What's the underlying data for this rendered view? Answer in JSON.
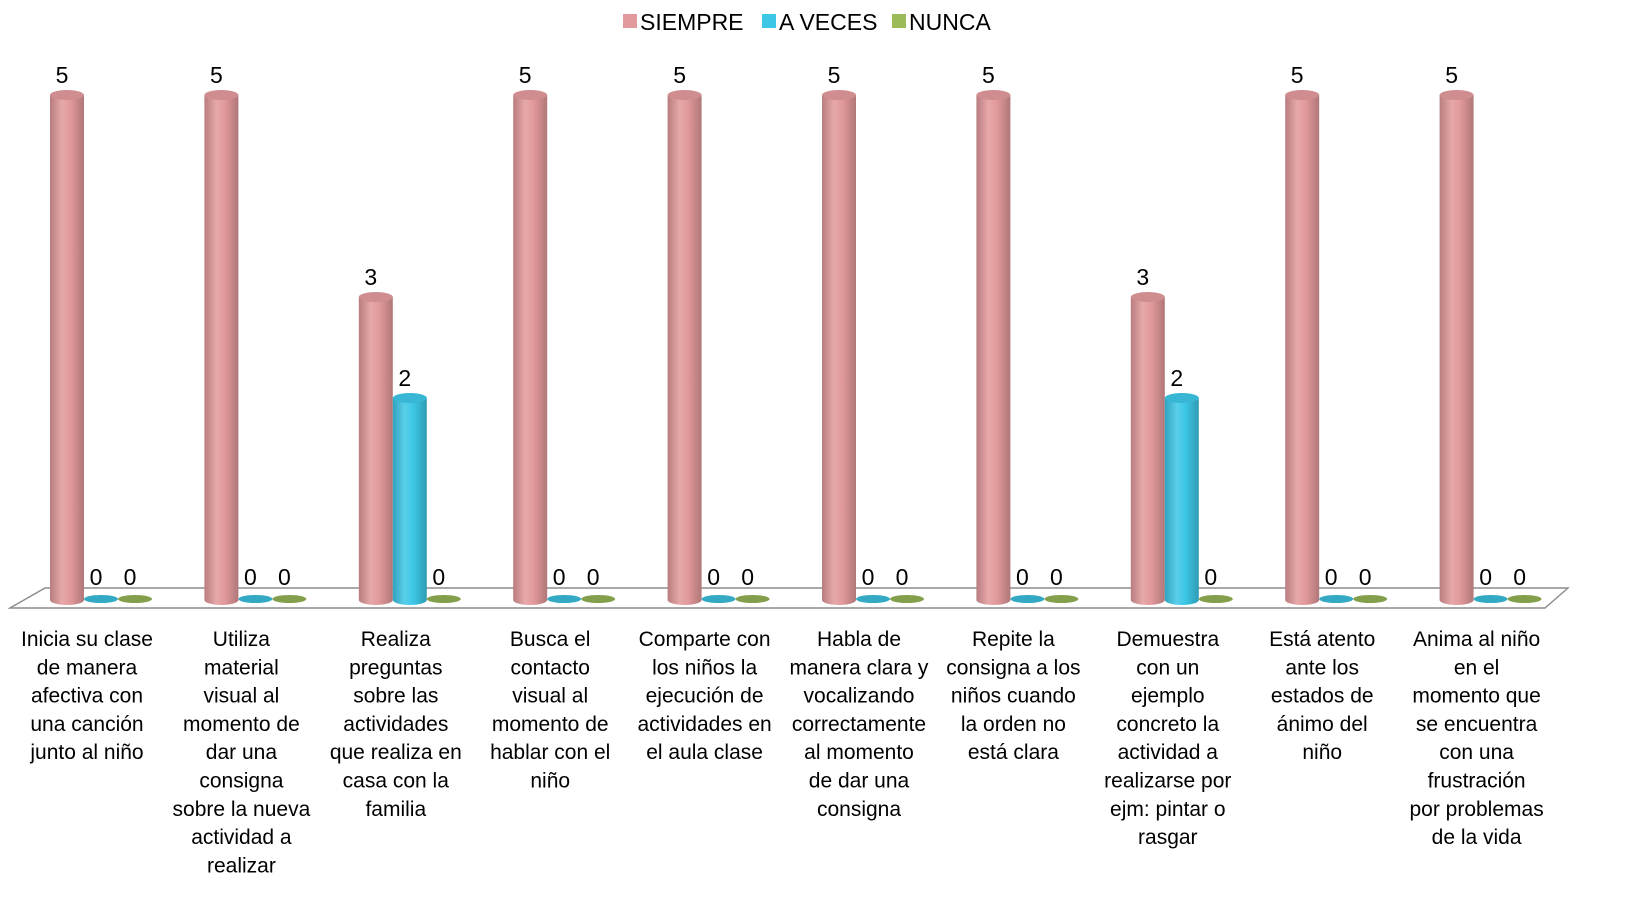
{
  "chart_data": {
    "type": "bar",
    "variant": "3d-cylinder",
    "title": "",
    "xlabel": "",
    "ylabel": "",
    "ylim": [
      0,
      5
    ],
    "grid": false,
    "legend_position": "top-center",
    "categories": [
      [
        "Inicia su clase",
        "de manera",
        "afectiva con",
        "una canción",
        "junto al niño"
      ],
      [
        "Utiliza",
        "material",
        "visual al",
        "momento de",
        "dar una",
        "consigna",
        "sobre la nueva",
        "actividad a",
        "realizar"
      ],
      [
        "Realiza",
        "preguntas",
        "sobre las",
        "actividades",
        "que realiza en",
        "casa con la",
        "familia"
      ],
      [
        "Busca el",
        "contacto",
        "visual al",
        "momento de",
        "hablar con el",
        "niño"
      ],
      [
        "Comparte con",
        "los niños la",
        "ejecución de",
        "actividades en",
        "el aula clase"
      ],
      [
        "Habla de",
        "manera clara y",
        "vocalizando",
        "correctamente",
        "al momento",
        "de dar una",
        "consigna"
      ],
      [
        "Repite la",
        "consigna a los",
        "niños cuando",
        "la orden no",
        "está clara"
      ],
      [
        "Demuestra",
        "con un",
        "ejemplo",
        "concreto la",
        "actividad a",
        "realizarse por",
        "ejm: pintar o",
        "rasgar"
      ],
      [
        "Está atento",
        "ante los",
        "estados de",
        "ánimo del",
        "niño"
      ],
      [
        "Anima al niño",
        "en el",
        "momento que",
        "se encuentra",
        "con una",
        "frustración",
        "por problemas",
        "de la vida"
      ]
    ],
    "series": [
      {
        "name": "SIEMPRE",
        "color": "#e2999b",
        "values": [
          5,
          5,
          3,
          5,
          5,
          5,
          5,
          3,
          5,
          5
        ]
      },
      {
        "name": "A VECES",
        "color": "#3cc7e6",
        "values": [
          0,
          0,
          2,
          0,
          0,
          0,
          0,
          2,
          0,
          0
        ]
      },
      {
        "name": "NUNCA",
        "color": "#9bbb59",
        "values": [
          0,
          0,
          0,
          0,
          0,
          0,
          0,
          0,
          0,
          0
        ]
      }
    ]
  }
}
